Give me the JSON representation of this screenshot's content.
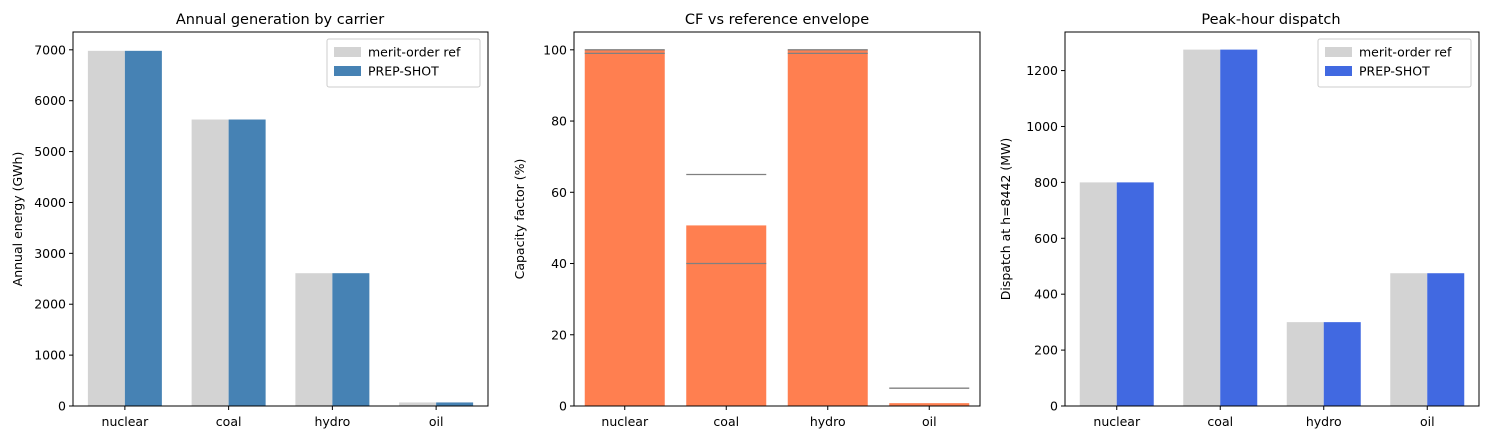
{
  "chart_data": [
    {
      "type": "bar",
      "title": "Annual generation by carrier",
      "xlabel": "",
      "ylabel": "Annual energy (GWh)",
      "categories": [
        "nuclear",
        "coal",
        "hydro",
        "oil"
      ],
      "ylim": [
        0,
        7350
      ],
      "yticks": [
        0,
        1000,
        2000,
        3000,
        4000,
        5000,
        6000,
        7000
      ],
      "series": [
        {
          "name": "merit-order ref",
          "values": [
            6980,
            5630,
            2610,
            70
          ],
          "color": "#d3d3d3"
        },
        {
          "name": "PREP-SHOT",
          "values": [
            6980,
            5630,
            2610,
            70
          ],
          "color": "#4682b4"
        }
      ],
      "legend": "top-right",
      "grid": false
    },
    {
      "type": "bar",
      "title": "CF vs reference envelope",
      "xlabel": "",
      "ylabel": "Capacity factor (%)",
      "categories": [
        "nuclear",
        "coal",
        "hydro",
        "oil"
      ],
      "ylim": [
        0,
        105
      ],
      "yticks": [
        0,
        20,
        40,
        60,
        80,
        100
      ],
      "series": [
        {
          "values": [
            100,
            50.7,
            100,
            0.8
          ],
          "color": "#ff7f50"
        }
      ],
      "envelope": {
        "lower": [
          99,
          40,
          99,
          null
        ],
        "upper": [
          100,
          65,
          100,
          5
        ],
        "color": "#808080"
      },
      "legend": "none",
      "grid": false
    },
    {
      "type": "bar",
      "title": "Peak-hour dispatch",
      "xlabel": "",
      "ylabel": "Dispatch at h=8442 (MW)",
      "categories": [
        "nuclear",
        "coal",
        "hydro",
        "oil"
      ],
      "ylim": [
        0,
        1338
      ],
      "yticks": [
        0,
        200,
        400,
        600,
        800,
        1000,
        1200
      ],
      "series": [
        {
          "name": "merit-order ref",
          "values": [
            800,
            1275,
            300,
            475
          ],
          "color": "#d3d3d3"
        },
        {
          "name": "PREP-SHOT",
          "values": [
            800,
            1275,
            300,
            475
          ],
          "color": "#4169e1"
        }
      ],
      "legend": "top-right",
      "grid": false
    }
  ]
}
